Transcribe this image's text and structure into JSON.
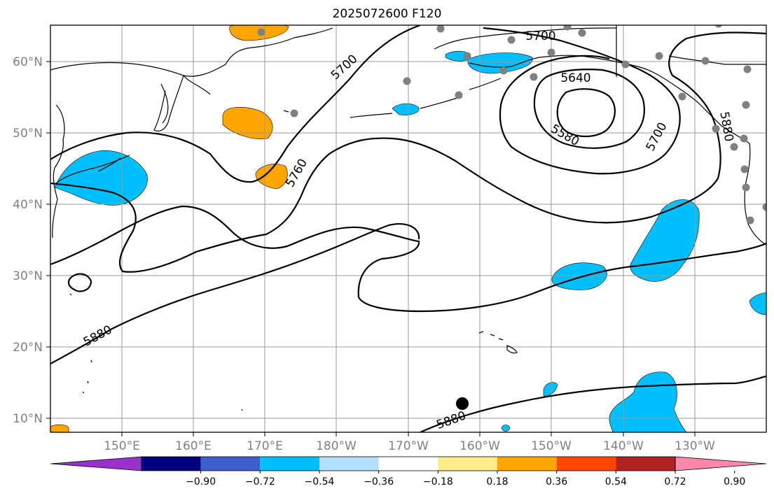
{
  "title": "2025072600 F120",
  "map": {
    "lon_labels": [
      "150°E",
      "160°E",
      "170°E",
      "180°W",
      "170°W",
      "160°W",
      "150°W",
      "140°W",
      "130°W"
    ],
    "lat_labels": [
      "60°N",
      "50°N",
      "40°N",
      "30°N",
      "20°N",
      "10°N"
    ],
    "contour_labels": [
      "5700",
      "5700",
      "5640",
      "5580",
      "5700",
      "5760",
      "5880",
      "5880",
      "5880"
    ]
  },
  "colorbar": {
    "ticks": [
      "−0.90",
      "−0.72",
      "−0.54",
      "−0.36",
      "−0.18",
      "0.18",
      "0.36",
      "0.54",
      "0.72",
      "0.90"
    ],
    "colors": [
      "#9932CC",
      "#000080",
      "#3A5FCD",
      "#00BFFF",
      "#B2E0FF",
      "#FFFFFF",
      "#FFED8A",
      "#FFA500",
      "#FF4500",
      "#B22222",
      "#FF88AA"
    ]
  }
}
